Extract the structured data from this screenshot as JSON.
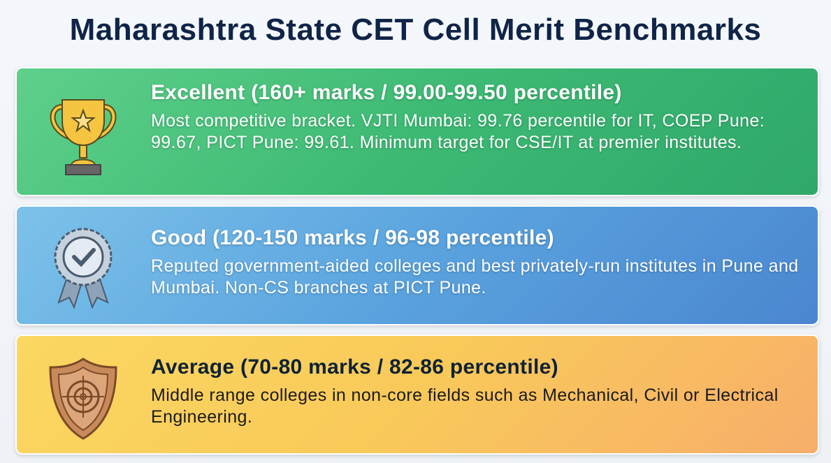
{
  "title": "Maharashtra State CET Cell Merit Benchmarks",
  "cards": [
    {
      "heading": "Excellent (160+ marks / 99.00-99.50 percentile)",
      "body": "Most competitive bracket. VJTI Mumbai: 99.76 percentile for IT, COEP Pune: 99.67, PICT Pune: 99.61. Minimum target for CSE/IT at premier institutes.",
      "icon": "trophy-icon",
      "color": "#3dba74"
    },
    {
      "heading": "Good (120-150 marks / 96-98 percentile)",
      "body": "Reputed government-aided colleges and best privately-run institutes in Pune and Mumbai. Non-CS branches at PICT Pune.",
      "icon": "badge-check-icon",
      "color": "#5aa3de"
    },
    {
      "heading": "Average (70-80 marks / 82-86 percentile)",
      "body": "Middle range colleges in non-core fields such as Mechanical, Civil or Electrical Engineering.",
      "icon": "shield-target-icon",
      "color": "#f9c95a"
    }
  ]
}
